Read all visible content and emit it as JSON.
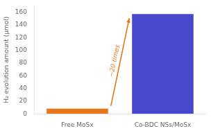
{
  "chart_data": {
    "type": "bar",
    "categories": [
      "Free MoSx",
      "Co-BDC NSs/MoSx"
    ],
    "values": [
      8,
      157
    ],
    "colors": [
      "#e8761a",
      "#4848cc"
    ],
    "ylabel": "H₂ evolution amount (μmol)",
    "ylim": [
      0,
      170
    ],
    "yticks": [
      0,
      20,
      40,
      60,
      80,
      100,
      120,
      140,
      160
    ],
    "annotations": [
      "~20 times"
    ],
    "grid": false
  }
}
